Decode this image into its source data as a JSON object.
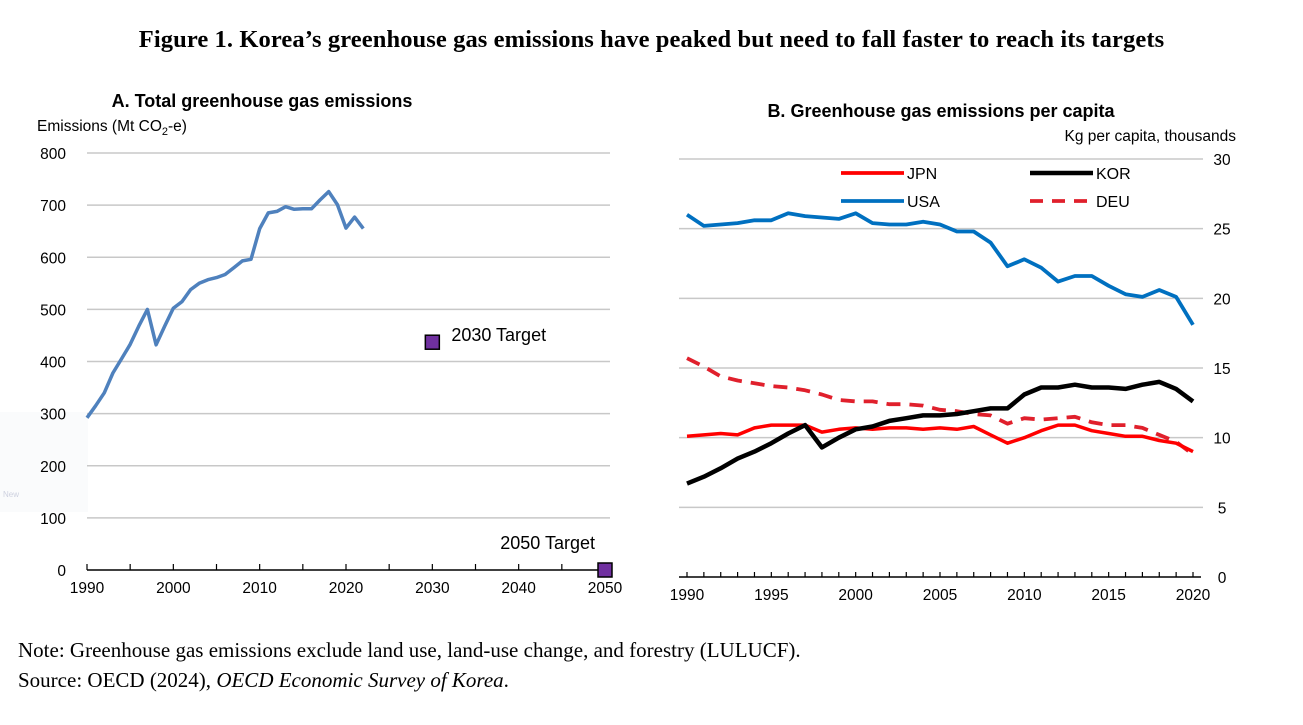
{
  "figure": {
    "title": "Figure 1. Korea’s greenhouse gas emissions have peaked but need to fall faster to reach its targets",
    "note": "Note: Greenhouse gas emissions exclude land use, land-use change, and forestry (LULUCF).",
    "source_prefix": "Source: OECD (2024), ",
    "source_italic": "OECD Economic Survey of Korea",
    "source_suffix": ".",
    "overlay_text": "New"
  },
  "colors": {
    "korea_total": "#4F81BD",
    "target": "#7030A0",
    "jpn": "#FF0000",
    "kor": "#000000",
    "usa": "#0070C0",
    "deu": "#E0202C",
    "grid": "#C8C8C8"
  },
  "chart_data": [
    {
      "type": "line",
      "title": "A. Total greenhouse gas emissions",
      "ylabel_prefix": "Emissions (Mt CO",
      "ylabel_sub": "2",
      "ylabel_suffix": "-e)",
      "xlabel": "",
      "xlim": [
        1990,
        2050
      ],
      "ylim": [
        0,
        800
      ],
      "xticks": [
        1990,
        2000,
        2010,
        2020,
        2030,
        2040,
        2050
      ],
      "yticks": [
        0,
        100,
        200,
        300,
        400,
        500,
        600,
        700,
        800
      ],
      "grid": true,
      "series": [
        {
          "name": "Korea total GHG emissions",
          "x": [
            1990,
            1991,
            1992,
            1993,
            1994,
            1995,
            1996,
            1997,
            1998,
            1999,
            2000,
            2001,
            2002,
            2003,
            2004,
            2005,
            2006,
            2007,
            2008,
            2009,
            2010,
            2011,
            2012,
            2013,
            2014,
            2015,
            2016,
            2017,
            2018,
            2019,
            2020,
            2021,
            2022
          ],
          "values": [
            292,
            315,
            340,
            378,
            405,
            433,
            468,
            500,
            432,
            468,
            502,
            515,
            538,
            550,
            557,
            561,
            567,
            580,
            593,
            596,
            655,
            685,
            688,
            697,
            692,
            693,
            693,
            710,
            726,
            701,
            656,
            677,
            655
          ]
        }
      ],
      "targets": [
        {
          "label": "2030 Target",
          "x": 2030,
          "value": 437
        },
        {
          "label": "2050 Target",
          "x": 2050,
          "value": 0
        }
      ]
    },
    {
      "type": "line",
      "title": "B. Greenhouse gas emissions per capita",
      "ylabel": "Kg per capita, thousands",
      "xlabel": "",
      "xlim": [
        1990,
        2020
      ],
      "ylim": [
        0,
        30
      ],
      "xticks": [
        1990,
        1995,
        2000,
        2005,
        2010,
        2015,
        2020
      ],
      "yticks": [
        0,
        5,
        10,
        15,
        20,
        25,
        30
      ],
      "y_axis_side": "right",
      "grid": true,
      "legend_position": "top-center",
      "x": [
        1990,
        1991,
        1992,
        1993,
        1994,
        1995,
        1996,
        1997,
        1998,
        1999,
        2000,
        2001,
        2002,
        2003,
        2004,
        2005,
        2006,
        2007,
        2008,
        2009,
        2010,
        2011,
        2012,
        2013,
        2014,
        2015,
        2016,
        2017,
        2018,
        2019,
        2020
      ],
      "series": [
        {
          "name": "JPN",
          "style": "solid",
          "values": [
            10.1,
            10.2,
            10.3,
            10.2,
            10.7,
            10.9,
            10.9,
            10.9,
            10.4,
            10.6,
            10.7,
            10.6,
            10.7,
            10.7,
            10.6,
            10.7,
            10.6,
            10.8,
            10.2,
            9.6,
            10.0,
            10.5,
            10.9,
            10.9,
            10.5,
            10.3,
            10.1,
            10.1,
            9.8,
            9.6,
            9.0
          ]
        },
        {
          "name": "KOR",
          "style": "solid",
          "values": [
            6.7,
            7.2,
            7.8,
            8.5,
            9.0,
            9.6,
            10.3,
            10.9,
            9.3,
            10.0,
            10.6,
            10.8,
            11.2,
            11.4,
            11.6,
            11.6,
            11.7,
            11.9,
            12.1,
            12.1,
            13.1,
            13.6,
            13.6,
            13.8,
            13.6,
            13.6,
            13.5,
            13.8,
            14.0,
            13.5,
            12.6
          ]
        },
        {
          "name": "USA",
          "style": "solid",
          "values": [
            26.0,
            25.2,
            25.3,
            25.4,
            25.6,
            25.6,
            26.1,
            25.9,
            25.8,
            25.7,
            26.1,
            25.4,
            25.3,
            25.3,
            25.5,
            25.3,
            24.8,
            24.8,
            24.0,
            22.3,
            22.8,
            22.2,
            21.2,
            21.6,
            21.6,
            20.9,
            20.3,
            20.1,
            20.6,
            20.1,
            18.1
          ]
        },
        {
          "name": "DEU",
          "style": "dashed",
          "values": [
            15.7,
            15.1,
            14.4,
            14.1,
            13.9,
            13.7,
            13.6,
            13.4,
            13.1,
            12.7,
            12.6,
            12.6,
            12.4,
            12.4,
            12.3,
            12.0,
            11.9,
            11.7,
            11.6,
            11.0,
            11.4,
            11.3,
            11.4,
            11.5,
            11.1,
            10.9,
            10.9,
            10.7,
            10.2,
            9.7,
            8.8
          ]
        }
      ]
    }
  ]
}
